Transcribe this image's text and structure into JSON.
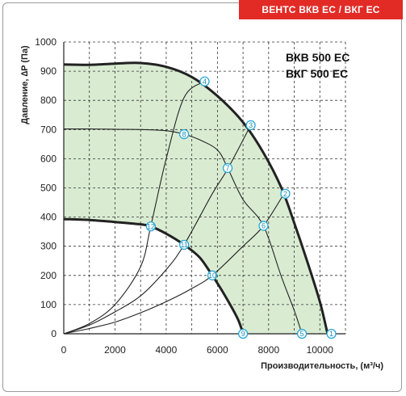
{
  "header": {
    "badge": "ВЕНТС ВКВ ЕС / ВКГ ЕС"
  },
  "colors": {
    "fill": "#d9ecd2",
    "curve": "#222222",
    "point": "#2aa7d6",
    "badge": "#e32b26"
  },
  "chart_data": {
    "type": "line",
    "title": "",
    "models": [
      "ВКВ 500 ЕС",
      "ВКГ 500 ЕС"
    ],
    "xlabel": "Производительность, (м³/ч)",
    "ylabel": "Давление, ∆P (Па)",
    "xlim": [
      0,
      11000
    ],
    "ylim": [
      0,
      1000
    ],
    "x_ticks": [
      0,
      2000,
      4000,
      6000,
      8000,
      10000
    ],
    "y_ticks": [
      0,
      100,
      200,
      300,
      400,
      500,
      600,
      700,
      800,
      900,
      1000
    ],
    "grid": true,
    "series": [
      {
        "style": "bold",
        "points": [
          [
            0,
            923
          ],
          [
            1000,
            922
          ],
          [
            2000,
            926
          ],
          [
            3000,
            928
          ],
          [
            4000,
            915
          ],
          [
            5000,
            880
          ],
          [
            6000,
            815
          ],
          [
            7000,
            725
          ],
          [
            7800,
            620
          ],
          [
            8500,
            500
          ],
          [
            9000,
            380
          ],
          [
            9500,
            250
          ],
          [
            10000,
            110
          ],
          [
            10300,
            0
          ]
        ]
      },
      {
        "style": "thin",
        "points": [
          [
            0,
            702
          ],
          [
            1000,
            702
          ],
          [
            2000,
            701
          ],
          [
            3000,
            700
          ],
          [
            4000,
            696
          ],
          [
            4700,
            684
          ],
          [
            5300,
            665
          ],
          [
            6000,
            630
          ],
          [
            6400,
            568
          ],
          [
            7000,
            460
          ],
          [
            7800,
            370
          ],
          [
            8500,
            195
          ],
          [
            9000,
            80
          ],
          [
            9300,
            0
          ]
        ]
      },
      {
        "style": "bold",
        "points": [
          [
            0,
            393
          ],
          [
            1000,
            390
          ],
          [
            2000,
            383
          ],
          [
            3000,
            375
          ],
          [
            3400,
            368
          ],
          [
            4000,
            343
          ],
          [
            4700,
            305
          ],
          [
            5300,
            262
          ],
          [
            5800,
            200
          ],
          [
            6300,
            130
          ],
          [
            6800,
            50
          ],
          [
            7000,
            0
          ]
        ]
      },
      {
        "style": "thin",
        "points": [
          [
            0,
            0
          ],
          [
            1000,
            35
          ],
          [
            2000,
            100
          ],
          [
            3000,
            230
          ],
          [
            3400,
            370
          ],
          [
            4000,
            600
          ],
          [
            4700,
            810
          ],
          [
            5500,
            865
          ]
        ]
      },
      {
        "style": "thin",
        "points": [
          [
            0,
            0
          ],
          [
            1000,
            30
          ],
          [
            2000,
            75
          ],
          [
            3000,
            130
          ],
          [
            4000,
            220
          ],
          [
            4700,
            305
          ],
          [
            5800,
            480
          ],
          [
            6400,
            565
          ],
          [
            7300,
            715
          ]
        ]
      },
      {
        "style": "thin",
        "points": [
          [
            0,
            0
          ],
          [
            1000,
            18
          ],
          [
            2000,
            40
          ],
          [
            3000,
            72
          ],
          [
            4000,
            110
          ],
          [
            5000,
            155
          ],
          [
            5800,
            200
          ],
          [
            7000,
            300
          ],
          [
            7800,
            370
          ],
          [
            8600,
            480
          ]
        ]
      }
    ],
    "fill_region": {
      "color": "#d9ecd2"
    },
    "points": [
      {
        "label": "1",
        "x": 10450,
        "y": 0
      },
      {
        "label": "2",
        "x": 8650,
        "y": 480
      },
      {
        "label": "3",
        "x": 7300,
        "y": 715
      },
      {
        "label": "4",
        "x": 5500,
        "y": 865
      },
      {
        "label": "5",
        "x": 9300,
        "y": 0
      },
      {
        "label": "6",
        "x": 7800,
        "y": 370
      },
      {
        "label": "7",
        "x": 6400,
        "y": 568
      },
      {
        "label": "8",
        "x": 4700,
        "y": 684
      },
      {
        "label": "9",
        "x": 7000,
        "y": 0
      },
      {
        "label": "10",
        "x": 5800,
        "y": 200
      },
      {
        "label": "11",
        "x": 4700,
        "y": 305
      },
      {
        "label": "12",
        "x": 3400,
        "y": 368
      }
    ]
  }
}
